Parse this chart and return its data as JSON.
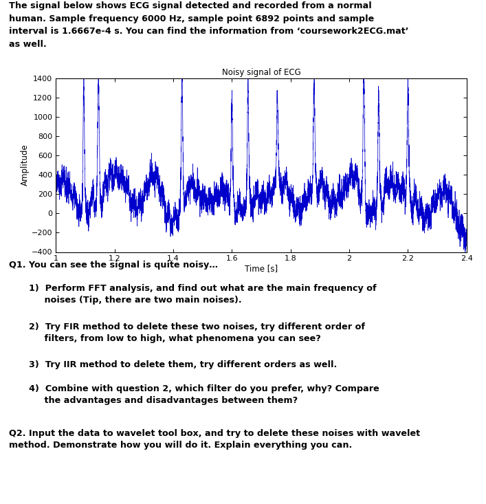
{
  "title": "Noisy signal of ECG",
  "xlabel": "Time [s]",
  "ylabel": "Amplitude",
  "xlim": [
    1.0,
    2.4
  ],
  "ylim": [
    -400,
    1400
  ],
  "yticks": [
    -400,
    -200,
    0,
    200,
    400,
    600,
    800,
    1000,
    1200,
    1400
  ],
  "xticks": [
    1.0,
    1.2,
    1.4,
    1.6,
    1.8,
    2.0,
    2.2,
    2.4
  ],
  "xtick_labels": [
    "1",
    "1.2",
    "1.4",
    "1.6",
    "1.8",
    "2",
    "2.2",
    "2.4"
  ],
  "line_color": "#0000CC",
  "background_color": "#FFFFFF",
  "header_line1": "The signal below shows ECG signal detected and recorded from a normal",
  "header_line2": "human. Sample frequency 6000 Hz, sample point 6892 points and sample",
  "header_line3": "interval is 1.6667e-4 s. You can find the information from ‘coursework2ECG.mat’",
  "header_line4": "as well.",
  "q1_text": "Q1. You can see the signal is quite noisy…",
  "q1_items": [
    "1)  Perform FFT analysis, and find out what are the main frequency of\n     noises (Tip, there are two main noises).",
    "2)  Try FIR method to delete these two noises, try different order of\n     filters, from low to high, what phenomena you can see?",
    "3)  Try IIR method to delete them, try different orders as well.",
    "4)  Combine with question 2, which filter do you prefer, why? Compare\n     the advantages and disadvantages between them?"
  ],
  "q2_text": "Q2. Input the data to wavelet tool box, and try to delete these noises with wavelet\nmethod. Demonstrate how you will do it. Explain everything you can.",
  "seed": 42,
  "fs": 6000,
  "t_start": 1.0,
  "t_end": 2.4
}
